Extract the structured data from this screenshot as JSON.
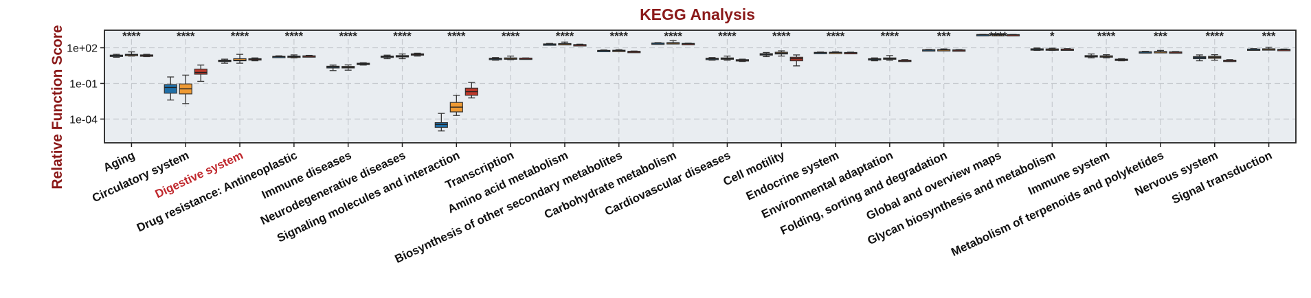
{
  "chart_data": {
    "type": "box",
    "title": "KEGG Analysis",
    "ylabel": "Relative Function Score",
    "xlabel": "",
    "yscale": "log",
    "ylim": [
      1e-06,
      3000
    ],
    "yticks": [
      {
        "value": 100,
        "label": "1e+02"
      },
      {
        "value": 0.1,
        "label": "1e-01"
      },
      {
        "value": 0.0001,
        "label": "1e-04"
      }
    ],
    "grid": true,
    "legend": "none",
    "colors": {
      "group1": "#1f6fa8",
      "group2": "#ee9a34",
      "group3": "#c0392b",
      "title": "#8b1a1a",
      "highlight_label": "#c0282d",
      "plot_bg": "#e9edf1",
      "grid": "#c5c9ce"
    },
    "highlighted_category": "Digestive system",
    "categories": [
      {
        "label": "Aging",
        "sig": "****",
        "boxes": [
          {
            "min": 16,
            "q1": 20,
            "median": 22,
            "q3": 24,
            "max": 28
          },
          {
            "min": 20,
            "q1": 25,
            "median": 26,
            "q3": 28,
            "max": 45
          },
          {
            "min": 18,
            "q1": 22,
            "median": 23,
            "q3": 25,
            "max": 28
          }
        ]
      },
      {
        "label": "Circulatory system",
        "sig": "****",
        "boxes": [
          {
            "min": 0.004,
            "q1": 0.015,
            "median": 0.045,
            "q3": 0.08,
            "max": 0.35
          },
          {
            "min": 0.002,
            "q1": 0.013,
            "median": 0.035,
            "q3": 0.09,
            "max": 0.5
          },
          {
            "min": 0.15,
            "q1": 0.6,
            "median": 0.85,
            "q3": 1.6,
            "max": 3.5
          }
        ]
      },
      {
        "label": "Digestive system",
        "sig": "****",
        "boxes": [
          {
            "min": 5,
            "q1": 7,
            "median": 8,
            "q3": 9,
            "max": 11
          },
          {
            "min": 5,
            "q1": 8,
            "median": 9,
            "q3": 12,
            "max": 28
          },
          {
            "min": 8,
            "q1": 10,
            "median": 11,
            "q3": 12,
            "max": 14
          }
        ]
      },
      {
        "label": "Drug resistance: Antineoplastic",
        "sig": "****",
        "boxes": [
          {
            "min": 15,
            "q1": 17,
            "median": 18,
            "q3": 19,
            "max": 21
          },
          {
            "min": 14,
            "q1": 17,
            "median": 18,
            "q3": 20,
            "max": 25
          },
          {
            "min": 17,
            "q1": 19,
            "median": 20,
            "q3": 21,
            "max": 23
          }
        ]
      },
      {
        "label": "Immune diseases",
        "sig": "****",
        "boxes": [
          {
            "min": 1.2,
            "q1": 2,
            "median": 2.4,
            "q3": 2.8,
            "max": 3.5
          },
          {
            "min": 1.3,
            "q1": 2,
            "median": 2.3,
            "q3": 2.7,
            "max": 3.6
          },
          {
            "min": 3.5,
            "q1": 4,
            "median": 4.5,
            "q3": 5,
            "max": 5.5
          }
        ]
      },
      {
        "label": "Neurodegenerative diseases",
        "sig": "****",
        "boxes": [
          {
            "min": 12,
            "q1": 16,
            "median": 18,
            "q3": 20,
            "max": 24
          },
          {
            "min": 12,
            "q1": 17,
            "median": 19,
            "q3": 22,
            "max": 30
          },
          {
            "min": 20,
            "q1": 26,
            "median": 28,
            "q3": 31,
            "max": 35
          }
        ]
      },
      {
        "label": "Signaling molecules and interaction",
        "sig": "****",
        "boxes": [
          {
            "min": 1e-05,
            "q1": 2e-05,
            "median": 3.5e-05,
            "q3": 5e-05,
            "max": 0.0003
          },
          {
            "min": 0.0002,
            "q1": 0.0004,
            "median": 0.001,
            "q3": 0.0025,
            "max": 0.01
          },
          {
            "min": 0.006,
            "q1": 0.01,
            "median": 0.02,
            "q3": 0.04,
            "max": 0.12
          }
        ]
      },
      {
        "label": "Transcription",
        "sig": "****",
        "boxes": [
          {
            "min": 9,
            "q1": 11,
            "median": 12,
            "q3": 13,
            "max": 15
          },
          {
            "min": 10,
            "q1": 12,
            "median": 13,
            "q3": 14,
            "max": 20
          },
          {
            "min": 11,
            "q1": 12,
            "median": 13,
            "q3": 13.5,
            "max": 14
          }
        ]
      },
      {
        "label": "Amino acid metabolism",
        "sig": "****",
        "boxes": [
          {
            "min": 170,
            "q1": 190,
            "median": 200,
            "q3": 210,
            "max": 230
          },
          {
            "min": 180,
            "q1": 200,
            "median": 210,
            "q3": 225,
            "max": 300
          },
          {
            "min": 150,
            "q1": 165,
            "median": 175,
            "q3": 185,
            "max": 200
          }
        ]
      },
      {
        "label": "Biosynthesis of other secondary metabolites",
        "sig": "****",
        "boxes": [
          {
            "min": 50,
            "q1": 55,
            "median": 58,
            "q3": 60,
            "max": 65
          },
          {
            "min": 52,
            "q1": 56,
            "median": 58,
            "q3": 62,
            "max": 68
          },
          {
            "min": 42,
            "q1": 46,
            "median": 48,
            "q3": 50,
            "max": 53
          }
        ]
      },
      {
        "label": "Carbohydrate metabolism",
        "sig": "****",
        "boxes": [
          {
            "min": 210,
            "q1": 230,
            "median": 240,
            "q3": 250,
            "max": 270
          },
          {
            "min": 220,
            "q1": 240,
            "median": 255,
            "q3": 270,
            "max": 400
          },
          {
            "min": 195,
            "q1": 210,
            "median": 220,
            "q3": 230,
            "max": 245
          }
        ]
      },
      {
        "label": "Cardiovascular diseases",
        "sig": "****",
        "boxes": [
          {
            "min": 9,
            "q1": 11,
            "median": 12,
            "q3": 13,
            "max": 15
          },
          {
            "min": 9,
            "q1": 11,
            "median": 12,
            "q3": 14,
            "max": 20
          },
          {
            "min": 7,
            "q1": 8,
            "median": 9,
            "q3": 10,
            "max": 11
          }
        ]
      },
      {
        "label": "Cell motility",
        "sig": "****",
        "boxes": [
          {
            "min": 18,
            "q1": 24,
            "median": 28,
            "q3": 32,
            "max": 40
          },
          {
            "min": 20,
            "q1": 30,
            "median": 35,
            "q3": 42,
            "max": 55
          },
          {
            "min": 3,
            "q1": 8,
            "median": 12,
            "q3": 16,
            "max": 25
          }
        ]
      },
      {
        "label": "Endocrine system",
        "sig": "****",
        "boxes": [
          {
            "min": 34,
            "q1": 37,
            "median": 39,
            "q3": 41,
            "max": 44
          },
          {
            "min": 35,
            "q1": 38,
            "median": 40,
            "q3": 42,
            "max": 46
          },
          {
            "min": 33,
            "q1": 36,
            "median": 38,
            "q3": 40,
            "max": 43
          }
        ]
      },
      {
        "label": "Environmental adaptation",
        "sig": "****",
        "boxes": [
          {
            "min": 8,
            "q1": 10,
            "median": 11,
            "q3": 12,
            "max": 14
          },
          {
            "min": 9,
            "q1": 11,
            "median": 12,
            "q3": 14,
            "max": 22
          },
          {
            "min": 7,
            "q1": 8,
            "median": 8.5,
            "q3": 9,
            "max": 10
          }
        ]
      },
      {
        "label": "Folding, sorting and degradation",
        "sig": "***",
        "boxes": [
          {
            "min": 58,
            "q1": 62,
            "median": 65,
            "q3": 68,
            "max": 72
          },
          {
            "min": 60,
            "q1": 64,
            "median": 67,
            "q3": 70,
            "max": 80
          },
          {
            "min": 56,
            "q1": 60,
            "median": 63,
            "q3": 66,
            "max": 70
          }
        ]
      },
      {
        "label": "Global and overview maps",
        "sig": "****",
        "boxes": [
          {
            "min": 1150,
            "q1": 1200,
            "median": 1250,
            "q3": 1300,
            "max": 1350
          },
          {
            "min": 1150,
            "q1": 1210,
            "median": 1260,
            "q3": 1310,
            "max": 1380
          },
          {
            "min": 1100,
            "q1": 1180,
            "median": 1230,
            "q3": 1280,
            "max": 1330
          }
        ]
      },
      {
        "label": "Glycan biosynthesis and metabolism",
        "sig": "*",
        "boxes": [
          {
            "min": 60,
            "q1": 70,
            "median": 75,
            "q3": 82,
            "max": 95
          },
          {
            "min": 60,
            "q1": 68,
            "median": 74,
            "q3": 80,
            "max": 92
          },
          {
            "min": 62,
            "q1": 70,
            "median": 74,
            "q3": 78,
            "max": 85
          }
        ]
      },
      {
        "label": "Immune system",
        "sig": "****",
        "boxes": [
          {
            "min": 14,
            "q1": 17,
            "median": 19,
            "q3": 22,
            "max": 30
          },
          {
            "min": 14,
            "q1": 17,
            "median": 19,
            "q3": 21,
            "max": 26
          },
          {
            "min": 8,
            "q1": 9,
            "median": 10,
            "q3": 11,
            "max": 12
          }
        ]
      },
      {
        "label": "Metabolism of terpenoids and polyketides",
        "sig": "***",
        "boxes": [
          {
            "min": 38,
            "q1": 42,
            "median": 44,
            "q3": 46,
            "max": 50
          },
          {
            "min": 40,
            "q1": 44,
            "median": 46,
            "q3": 48,
            "max": 60
          },
          {
            "min": 38,
            "q1": 41,
            "median": 43,
            "q3": 45,
            "max": 48
          }
        ]
      },
      {
        "label": "Nervous system",
        "sig": "****",
        "boxes": [
          {
            "min": 8,
            "q1": 12,
            "median": 15,
            "q3": 18,
            "max": 25
          },
          {
            "min": 9,
            "q1": 13,
            "median": 16,
            "q3": 19,
            "max": 26
          },
          {
            "min": 7,
            "q1": 8,
            "median": 8.5,
            "q3": 9,
            "max": 10
          }
        ]
      },
      {
        "label": "Signal transduction",
        "sig": "***",
        "boxes": [
          {
            "min": 65,
            "q1": 70,
            "median": 74,
            "q3": 78,
            "max": 85
          },
          {
            "min": 68,
            "q1": 73,
            "median": 77,
            "q3": 82,
            "max": 110
          },
          {
            "min": 62,
            "q1": 67,
            "median": 70,
            "q3": 73,
            "max": 78
          }
        ]
      }
    ]
  }
}
